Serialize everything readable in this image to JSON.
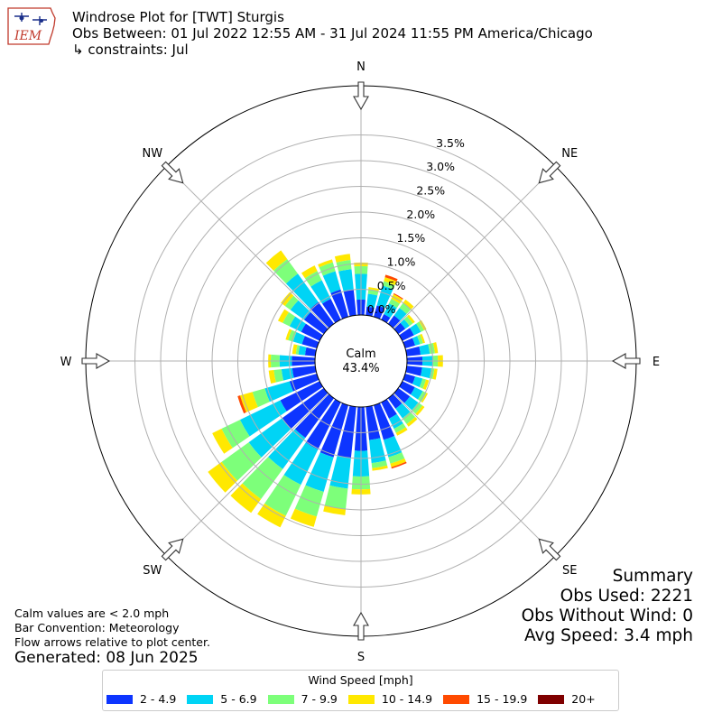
{
  "header": {
    "title_line1": "Windrose Plot for [TWT] Sturgis",
    "title_line2": "Obs Between: 01 Jul 2022 12:55 AM - 31 Jul 2024 11:55 PM America/Chicago",
    "title_line3": "↳ constraints: Jul"
  },
  "logo_text": "IEM",
  "notes": {
    "line1": "Calm values are < 2.0 mph",
    "line2": "Bar Convention: Meteorology",
    "line3": "Flow arrows relative to plot center."
  },
  "generated": "Generated: 08 Jun 2025",
  "summary": {
    "heading": "Summary",
    "obs_used": "Obs Used: 2221",
    "obs_without_wind": "Obs Without Wind: 0",
    "avg_speed": "Avg Speed: 3.4 mph"
  },
  "legend": {
    "title": "Wind Speed [mph]",
    "items": [
      {
        "label": "2 - 4.9",
        "color": "#0d35ff"
      },
      {
        "label": "5 - 6.9",
        "color": "#00d4f5"
      },
      {
        "label": "7 - 9.9",
        "color": "#7dff7a"
      },
      {
        "label": "10 - 14.9",
        "color": "#ffe800"
      },
      {
        "label": "15 - 19.9",
        "color": "#ff4a00"
      },
      {
        "label": "20+",
        "color": "#7f0000"
      }
    ]
  },
  "chart_data": {
    "type": "windrose",
    "calm_label": "Calm",
    "calm_value": "43.4%",
    "radial_tick_labels": [
      "0.0%",
      "0.5%",
      "1.0%",
      "1.5%",
      "2.0%",
      "2.5%",
      "3.0%",
      "3.5%"
    ],
    "radial_ticks": [
      0.0,
      0.5,
      1.0,
      1.5,
      2.0,
      2.5,
      3.0,
      3.5
    ],
    "direction_labels": [
      "N",
      "NE",
      "E",
      "SE",
      "S",
      "SW",
      "W",
      "NW"
    ],
    "grid": true,
    "bin_width_deg": 10,
    "series_names": [
      "2 - 4.9",
      "5 - 6.9",
      "7 - 9.9",
      "10 - 14.9",
      "15 - 19.9",
      "20+"
    ],
    "directions_deg": [
      0,
      10,
      20,
      30,
      40,
      50,
      60,
      70,
      80,
      90,
      100,
      110,
      120,
      130,
      140,
      150,
      160,
      170,
      180,
      190,
      200,
      210,
      220,
      230,
      240,
      250,
      260,
      270,
      280,
      290,
      300,
      310,
      320,
      330,
      340,
      350
    ],
    "cumulative_percent": [
      [
        0.3,
        0.8,
        0.95,
        1.02,
        1.02,
        1.02
      ],
      [
        0.17,
        0.42,
        0.51,
        0.55,
        0.55,
        0.55
      ],
      [
        0.23,
        0.63,
        0.72,
        0.8,
        0.85,
        0.85
      ],
      [
        0.12,
        0.35,
        0.45,
        0.55,
        0.57,
        0.57
      ],
      [
        0.2,
        0.38,
        0.5,
        0.58,
        0.58,
        0.58
      ],
      [
        0.17,
        0.27,
        0.35,
        0.4,
        0.4,
        0.4
      ],
      [
        0.25,
        0.4,
        0.47,
        0.52,
        0.52,
        0.52
      ],
      [
        0.2,
        0.3,
        0.36,
        0.4,
        0.4,
        0.4
      ],
      [
        0.27,
        0.45,
        0.55,
        0.61,
        0.61,
        0.61
      ],
      [
        0.3,
        0.51,
        0.6,
        0.7,
        0.7,
        0.7
      ],
      [
        0.3,
        0.48,
        0.54,
        0.6,
        0.6,
        0.6
      ],
      [
        0.2,
        0.35,
        0.42,
        0.48,
        0.48,
        0.48
      ],
      [
        0.27,
        0.44,
        0.52,
        0.55,
        0.55,
        0.55
      ],
      [
        0.28,
        0.48,
        0.58,
        0.63,
        0.63,
        0.63
      ],
      [
        0.25,
        0.48,
        0.62,
        0.68,
        0.68,
        0.68
      ],
      [
        0.35,
        0.57,
        0.66,
        0.72,
        0.72,
        0.72
      ],
      [
        0.7,
        1.05,
        1.18,
        1.25,
        1.28,
        1.28
      ],
      [
        0.65,
        1.1,
        1.2,
        1.25,
        1.25,
        1.25
      ],
      [
        0.85,
        1.35,
        1.6,
        1.7,
        1.7,
        1.7
      ],
      [
        1.0,
        1.6,
        2.0,
        2.12,
        2.12,
        2.12
      ],
      [
        1.05,
        1.75,
        2.25,
        2.46,
        2.46,
        2.46
      ],
      [
        1.02,
        1.78,
        2.45,
        2.7,
        2.7,
        2.7
      ],
      [
        0.95,
        1.7,
        2.42,
        2.75,
        2.75,
        2.75
      ],
      [
        1.0,
        1.8,
        2.45,
        2.78,
        2.78,
        2.78
      ],
      [
        0.85,
        1.72,
        2.12,
        2.32,
        2.32,
        2.32
      ],
      [
        0.55,
        1.05,
        1.3,
        1.55,
        1.6,
        1.6
      ],
      [
        0.45,
        0.66,
        0.81,
        0.91,
        0.91,
        0.91
      ],
      [
        0.45,
        0.69,
        0.86,
        0.91,
        0.91,
        0.91
      ],
      [
        0.2,
        0.33,
        0.38,
        0.45,
        0.45,
        0.45
      ],
      [
        0.3,
        0.48,
        0.58,
        0.63,
        0.63,
        0.63
      ],
      [
        0.4,
        0.65,
        0.8,
        0.9,
        0.9,
        0.9
      ],
      [
        0.47,
        0.8,
        0.93,
        1.03,
        1.03,
        1.03
      ],
      [
        0.52,
        1.2,
        1.55,
        1.76,
        1.76,
        1.76
      ],
      [
        0.45,
        0.85,
        1.05,
        1.17,
        1.17,
        1.17
      ],
      [
        0.55,
        0.92,
        1.1,
        1.16,
        1.16,
        1.16
      ],
      [
        0.5,
        0.9,
        1.08,
        1.2,
        1.2,
        1.2
      ]
    ]
  }
}
